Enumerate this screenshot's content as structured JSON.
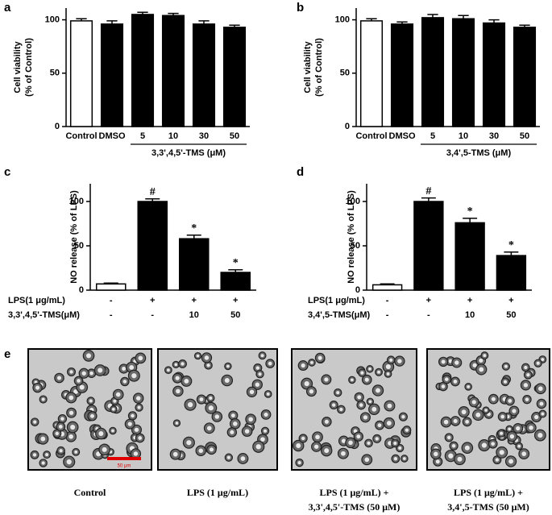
{
  "chart_data": [
    {
      "type": "bar",
      "label": "a",
      "ylabel": [
        "Cell viability",
        "(% of Control)"
      ],
      "categories": [
        "Control",
        "DMSO",
        "5",
        "10",
        "30",
        "50"
      ],
      "group_label": "3,3',4,5'-TMS (μM)",
      "values": [
        99,
        96,
        105,
        104,
        96,
        93
      ],
      "errors": [
        2,
        3,
        2,
        2,
        3,
        2
      ],
      "colors": [
        "#ffffff",
        "#000000",
        "#000000",
        "#000000",
        "#000000",
        "#000000"
      ],
      "ylim": [
        0,
        111
      ],
      "yticks": [
        0,
        50,
        100
      ]
    },
    {
      "type": "bar",
      "label": "b",
      "ylabel": [
        "Cell viability",
        "(% of Control)"
      ],
      "categories": [
        "Control",
        "DMSO",
        "5",
        "10",
        "30",
        "50"
      ],
      "group_label": "3,4',5-TMS (μM)",
      "values": [
        99,
        96,
        102,
        101,
        97,
        93
      ],
      "errors": [
        2,
        2,
        3,
        3,
        3,
        2
      ],
      "colors": [
        "#ffffff",
        "#000000",
        "#000000",
        "#000000",
        "#000000",
        "#000000"
      ],
      "ylim": [
        0,
        111
      ],
      "yticks": [
        0,
        50,
        100
      ]
    },
    {
      "type": "bar",
      "label": "c",
      "ylabel": [
        "NO release (% of LPS)"
      ],
      "category_rows": [
        {
          "label": "LPS(1 μg/mL)",
          "values": [
            "-",
            "+",
            "+",
            "+"
          ]
        },
        {
          "label": "3,3',4,5'-TMS(μM)",
          "values": [
            "-",
            "-",
            "10",
            "50"
          ]
        }
      ],
      "values": [
        7,
        100,
        58,
        20
      ],
      "errors": [
        1,
        3,
        4,
        3
      ],
      "annotations": [
        null,
        "#",
        "*",
        "*"
      ],
      "colors": [
        "#ffffff",
        "#000000",
        "#000000",
        "#000000"
      ],
      "ylim": [
        0,
        120
      ],
      "yticks": [
        0,
        50,
        100
      ]
    },
    {
      "type": "bar",
      "label": "d",
      "ylabel": [
        "NO release (% of LPS)"
      ],
      "category_rows": [
        {
          "label": "LPS(1 μg/mL)",
          "values": [
            "-",
            "+",
            "+",
            "+"
          ]
        },
        {
          "label": "3,4',5-TMS(μM)",
          "values": [
            "-",
            "-",
            "10",
            "50"
          ]
        }
      ],
      "values": [
        6,
        100,
        76,
        39
      ],
      "errors": [
        1,
        4,
        5,
        4
      ],
      "annotations": [
        null,
        "#",
        "*",
        "*"
      ],
      "colors": [
        "#ffffff",
        "#000000",
        "#000000",
        "#000000"
      ],
      "ylim": [
        0,
        120
      ],
      "yticks": [
        0,
        50,
        100
      ]
    }
  ],
  "micrographs": {
    "label": "e",
    "scale_bar": "50 μm",
    "captions": [
      [
        "Control"
      ],
      [
        "LPS (1 μg/mL)"
      ],
      [
        "LPS (1 μg/mL) +",
        "3,3',4,5'-TMS (50 μM)"
      ],
      [
        "LPS (1 μg/mL) +",
        "3,4',5-TMS (50 μM)"
      ]
    ]
  }
}
